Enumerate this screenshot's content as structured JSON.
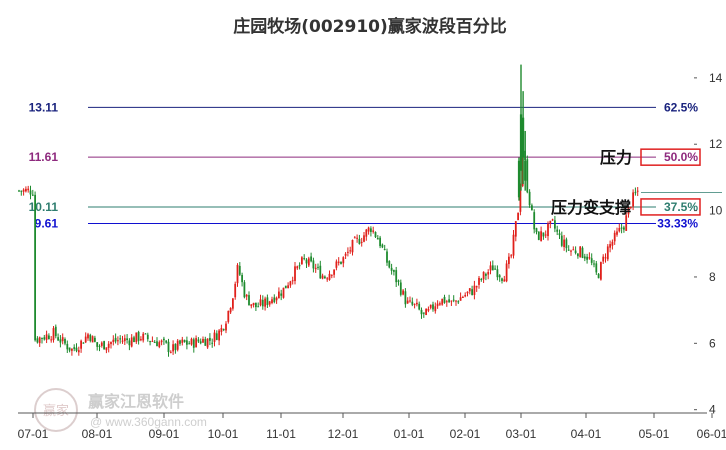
{
  "chart_data": {
    "type": "candlestick",
    "title": "庄园牧场(002910)赢家波段百分比",
    "x_ticks": [
      "07-01",
      "08-01",
      "09-01",
      "10-01",
      "11-01",
      "12-01",
      "01-01",
      "02-01",
      "03-01",
      "04-01",
      "05-01",
      "06-01"
    ],
    "y_ticks": [
      4,
      6,
      8,
      10,
      12,
      14
    ],
    "ylim": [
      3.9,
      14.9
    ],
    "up_color": "#e0201b",
    "down_color": "#1e8a2e",
    "levels": [
      {
        "price": "13.11",
        "value": 13.11,
        "pct": "62.5%",
        "color": "#1a237e",
        "pct_color": "#1a237e",
        "boxed": false
      },
      {
        "price": "11.61",
        "value": 11.61,
        "pct": "50.0%",
        "color": "#8e2a7e",
        "pct_color": "#8e2a7e",
        "boxed": true
      },
      {
        "price": "10.11",
        "value": 10.11,
        "pct": "37.5%",
        "color": "#2e7d6f",
        "pct_color": "#2e7d6f",
        "boxed": true
      },
      {
        "price": "9.61",
        "value": 9.61,
        "pct": "33.33%",
        "color": "#1010d0",
        "pct_color": "#1010d0",
        "boxed": false
      }
    ],
    "annotations": [
      {
        "text": "压力",
        "level": 11.61
      },
      {
        "text": "压力变支撑",
        "level": 10.11
      }
    ],
    "price_path": [
      [
        "07-01",
        6.1
      ],
      [
        "07-06",
        6.2
      ],
      [
        "07-11",
        6.3
      ],
      [
        "07-16",
        6.0
      ],
      [
        "07-20",
        5.8
      ],
      [
        "07-24",
        6.0
      ],
      [
        "07-28",
        6.3
      ],
      [
        "08-01",
        5.9
      ],
      [
        "08-06",
        6.0
      ],
      [
        "08-11",
        6.1
      ],
      [
        "08-16",
        6.1
      ],
      [
        "08-21",
        6.2
      ],
      [
        "08-26",
        6.1
      ],
      [
        "08-31",
        6.0
      ],
      [
        "09-05",
        5.8
      ],
      [
        "09-10",
        6.0
      ],
      [
        "09-15",
        6.0
      ],
      [
        "09-20",
        6.1
      ],
      [
        "09-25",
        6.1
      ],
      [
        "09-30",
        6.4
      ],
      [
        "10-03",
        6.8
      ],
      [
        "10-06",
        7.4
      ],
      [
        "10-09",
        8.3
      ],
      [
        "10-13",
        7.4
      ],
      [
        "10-18",
        7.1
      ],
      [
        "10-23",
        7.2
      ],
      [
        "10-28",
        7.4
      ],
      [
        "11-02",
        7.6
      ],
      [
        "11-07",
        8.1
      ],
      [
        "11-12",
        8.5
      ],
      [
        "11-17",
        8.3
      ],
      [
        "11-22",
        8.0
      ],
      [
        "11-27",
        8.3
      ],
      [
        "12-02",
        8.6
      ],
      [
        "12-06",
        9.0
      ],
      [
        "12-10",
        9.2
      ],
      [
        "12-14",
        9.5
      ],
      [
        "12-18",
        9.1
      ],
      [
        "12-22",
        8.4
      ],
      [
        "12-27",
        7.8
      ],
      [
        "12-31",
        7.2
      ],
      [
        "01-05",
        7.1
      ],
      [
        "01-09",
        6.8
      ],
      [
        "01-13",
        7.0
      ],
      [
        "01-17",
        7.3
      ],
      [
        "01-21",
        7.3
      ],
      [
        "01-25",
        7.2
      ],
      [
        "01-30",
        7.4
      ],
      [
        "02-05",
        7.6
      ],
      [
        "02-10",
        8.0
      ],
      [
        "02-15",
        8.3
      ],
      [
        "02-20",
        8.0
      ],
      [
        "02-24",
        8.6
      ],
      [
        "02-28",
        10.2
      ],
      [
        "03-02",
        12.0
      ],
      [
        "03-04",
        10.7
      ],
      [
        "03-08",
        9.2
      ],
      [
        "03-12",
        9.3
      ],
      [
        "03-16",
        9.6
      ],
      [
        "03-20",
        9.1
      ],
      [
        "03-24",
        8.8
      ],
      [
        "03-28",
        8.8
      ],
      [
        "04-02",
        8.6
      ],
      [
        "04-06",
        8.0
      ],
      [
        "04-10",
        8.8
      ],
      [
        "04-14",
        9.2
      ],
      [
        "04-18",
        9.6
      ],
      [
        "04-21",
        10.3
      ],
      [
        "04-24",
        10.6
      ]
    ]
  },
  "watermark": {
    "name": "赢家江恩软件",
    "url": "@ www.360gann.com",
    "seal": "赢家"
  }
}
